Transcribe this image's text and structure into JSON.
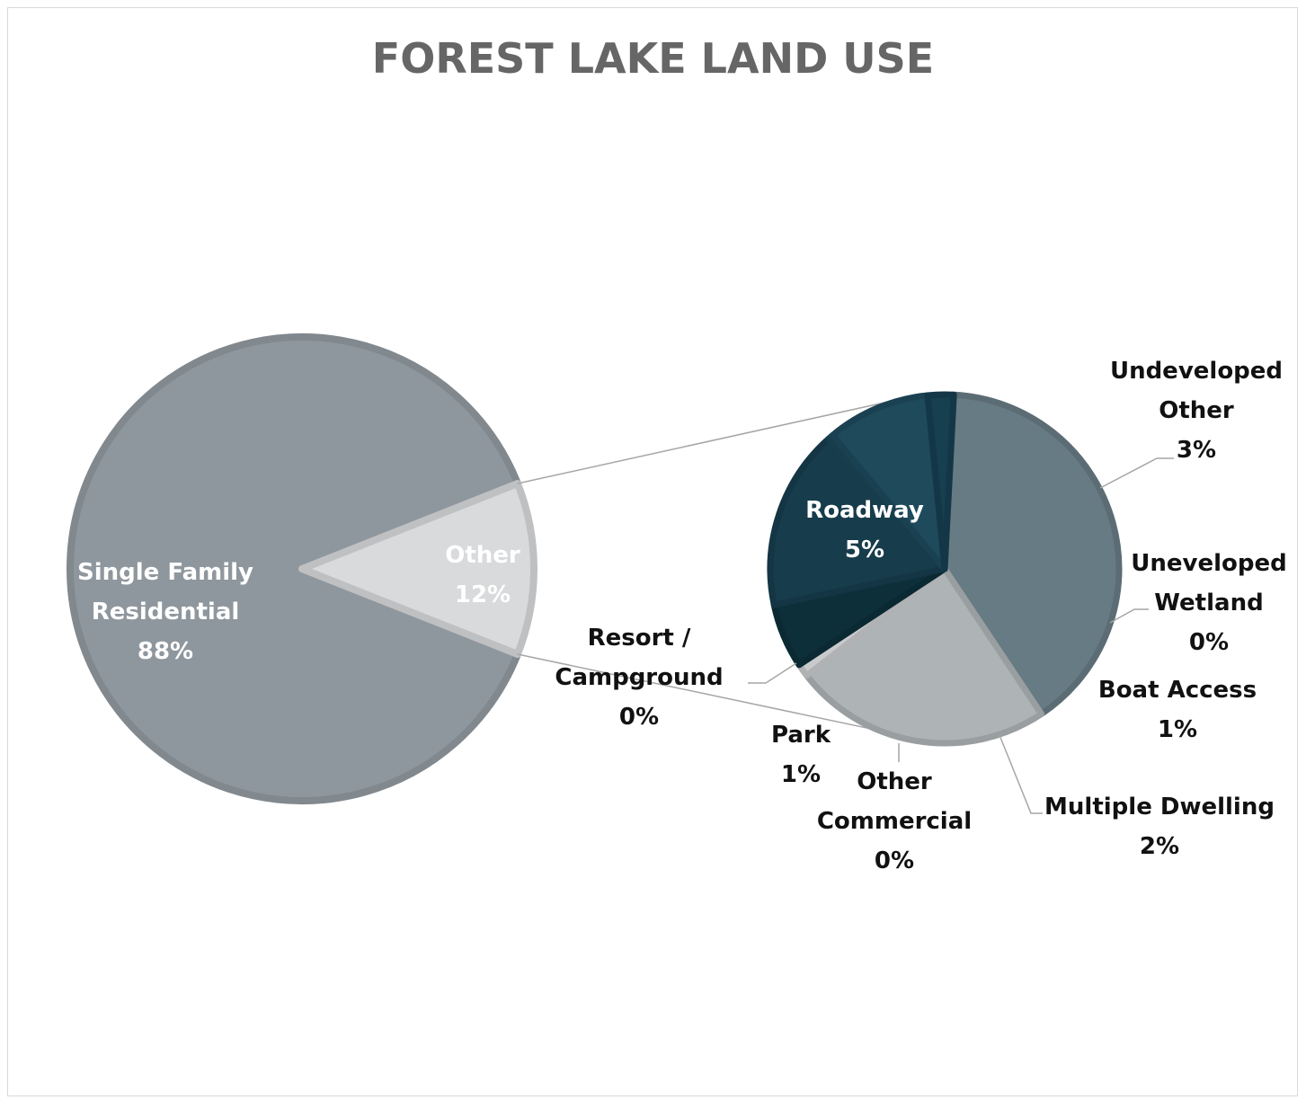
{
  "chart_data": {
    "type": "bar-of-pie",
    "title": "FOREST LAKE LAND USE",
    "main_pie": {
      "slices": [
        {
          "label_lines": [
            "Single Family",
            "Residential"
          ],
          "pct": "88%",
          "value": 88,
          "color": "#8f979e"
        },
        {
          "label_lines": [
            "Other"
          ],
          "pct": "12%",
          "value": 12,
          "color": "#d9dadc"
        }
      ]
    },
    "secondary_pie": {
      "slices": [
        {
          "label_lines": [
            "Roadway"
          ],
          "pct": "5%",
          "value": 5.0,
          "color": "#677b84"
        },
        {
          "label_lines": [
            "Undeveloped",
            "Other"
          ],
          "pct": "3%",
          "value": 3.0,
          "color": "#aeb3b6"
        },
        {
          "label_lines": [
            "Uneveloped",
            "Wetland"
          ],
          "pct": "0%",
          "value": 0.15,
          "color": "#c8cacc"
        },
        {
          "label_lines": [
            "Boat Access"
          ],
          "pct": "1%",
          "value": 0.75,
          "color": "#0d2f3a"
        },
        {
          "label_lines": [
            "Multiple Dwelling"
          ],
          "pct": "2%",
          "value": 2.1,
          "color": "#173c4c"
        },
        {
          "label_lines": [
            "Other",
            "Commercial"
          ],
          "pct": "0%",
          "value": 0.06,
          "color": "#1b4658"
        },
        {
          "label_lines": [
            "Park"
          ],
          "pct": "1%",
          "value": 1.2,
          "color": "#1e4a5c"
        },
        {
          "label_lines": [
            "Resort /",
            "Campground"
          ],
          "pct": "0%",
          "value": 0.3,
          "color": "#163f50"
        }
      ]
    },
    "legend": "none"
  }
}
